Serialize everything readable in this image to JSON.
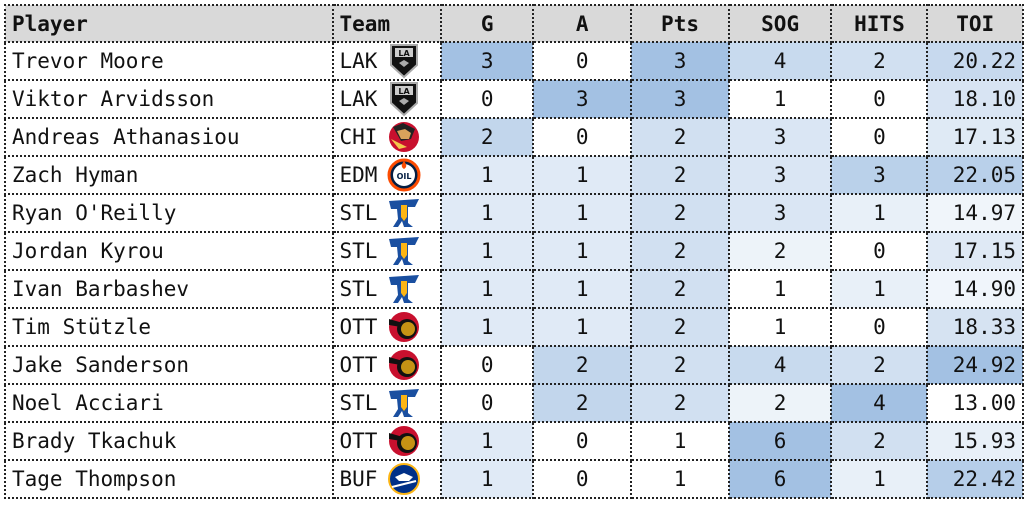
{
  "columns": [
    "Player",
    "Team",
    "G",
    "A",
    "Pts",
    "SOG",
    "HITS",
    "TOI"
  ],
  "heat_color": "#a3c1e3",
  "rows": [
    {
      "player": "Trevor Moore",
      "team": "LAK",
      "logo": "kings-logo",
      "g": "3",
      "a": "0",
      "pts": "3",
      "sog": "4",
      "hits": "2",
      "toi": "20.22"
    },
    {
      "player": "Viktor Arvidsson",
      "team": "LAK",
      "logo": "kings-logo",
      "g": "0",
      "a": "3",
      "pts": "3",
      "sog": "1",
      "hits": "0",
      "toi": "18.10"
    },
    {
      "player": "Andreas Athanasiou",
      "team": "CHI",
      "logo": "blackhawks-logo",
      "g": "2",
      "a": "0",
      "pts": "2",
      "sog": "3",
      "hits": "0",
      "toi": "17.13"
    },
    {
      "player": "Zach Hyman",
      "team": "EDM",
      "logo": "oilers-logo",
      "g": "1",
      "a": "1",
      "pts": "2",
      "sog": "3",
      "hits": "3",
      "toi": "22.05"
    },
    {
      "player": "Ryan O'Reilly",
      "team": "STL",
      "logo": "blues-logo",
      "g": "1",
      "a": "1",
      "pts": "2",
      "sog": "3",
      "hits": "1",
      "toi": "14.97"
    },
    {
      "player": "Jordan Kyrou",
      "team": "STL",
      "logo": "blues-logo",
      "g": "1",
      "a": "1",
      "pts": "2",
      "sog": "2",
      "hits": "0",
      "toi": "17.15"
    },
    {
      "player": "Ivan Barbashev",
      "team": "STL",
      "logo": "blues-logo",
      "g": "1",
      "a": "1",
      "pts": "2",
      "sog": "1",
      "hits": "1",
      "toi": "14.90"
    },
    {
      "player": "Tim Stützle",
      "team": "OTT",
      "logo": "senators-logo",
      "g": "1",
      "a": "1",
      "pts": "2",
      "sog": "1",
      "hits": "0",
      "toi": "18.33"
    },
    {
      "player": "Jake Sanderson",
      "team": "OTT",
      "logo": "senators-logo",
      "g": "0",
      "a": "2",
      "pts": "2",
      "sog": "4",
      "hits": "2",
      "toi": "24.92"
    },
    {
      "player": "Noel Acciari",
      "team": "STL",
      "logo": "blues-logo",
      "g": "0",
      "a": "2",
      "pts": "2",
      "sog": "2",
      "hits": "4",
      "toi": "13.00"
    },
    {
      "player": "Brady Tkachuk",
      "team": "OTT",
      "logo": "senators-logo",
      "g": "1",
      "a": "0",
      "pts": "1",
      "sog": "6",
      "hits": "2",
      "toi": "15.93"
    },
    {
      "player": "Tage Thompson",
      "team": "BUF",
      "logo": "sabres-logo",
      "g": "1",
      "a": "0",
      "pts": "1",
      "sog": "6",
      "hits": "1",
      "toi": "22.42"
    }
  ]
}
